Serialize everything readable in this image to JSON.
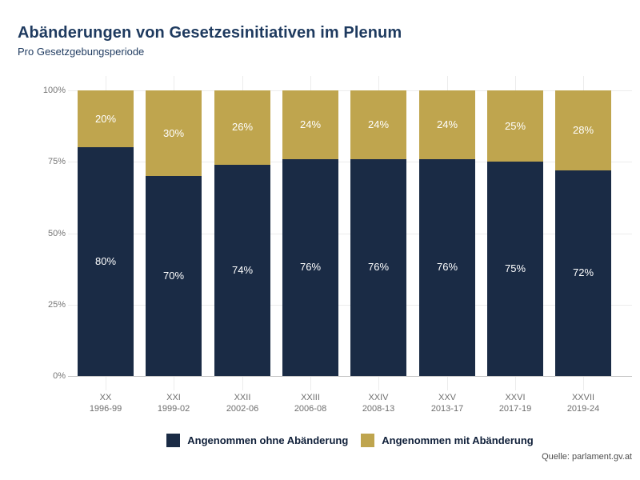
{
  "header": {
    "title": "Abänderungen von Gesetzesinitiativen im Plenum",
    "subtitle": "Pro Gesetzgebungsperiode"
  },
  "footer": {
    "source": "Quelle: parlament.gv.at"
  },
  "colors": {
    "navy": "#1a2b45",
    "gold": "#bfa54e",
    "title_text": "#1e3a5f",
    "axis_label": "#757575",
    "gridline": "#ececec",
    "axis_line": "#c6c6c6",
    "bar_label": "#ffffff",
    "legend_text": "#0e1e38"
  },
  "chart_data": {
    "type": "bar",
    "stacked": true,
    "title": "Abänderungen von Gesetzesinitiativen im Plenum",
    "subtitle": "Pro Gesetzgebungsperiode",
    "categories": [
      "XX",
      "XXI",
      "XXII",
      "XXIII",
      "XXIV",
      "XXV",
      "XXVI",
      "XXVII"
    ],
    "category_sublabels": [
      "1996-99",
      "1999-02",
      "2002-06",
      "2006-08",
      "2008-13",
      "2013-17",
      "2017-19",
      "2019-24"
    ],
    "series": [
      {
        "name": "Angenommen ohne Abänderung",
        "color": "#1a2b45",
        "values": [
          80,
          70,
          74,
          76,
          76,
          76,
          75,
          72
        ],
        "labels": [
          "80%",
          "70%",
          "74%",
          "76%",
          "76%",
          "76%",
          "75%",
          "72%"
        ]
      },
      {
        "name": "Angenommen mit Abänderung",
        "color": "#bfa54e",
        "values": [
          20,
          30,
          26,
          24,
          24,
          24,
          25,
          28
        ],
        "labels": [
          "20%",
          "30%",
          "26%",
          "24%",
          "24%",
          "24%",
          "25%",
          "28%"
        ]
      }
    ],
    "y_axis": {
      "tick_values": [
        0,
        25,
        50,
        75,
        100
      ],
      "tick_labels": [
        "0%",
        "25%",
        "50%",
        "75%",
        "100%"
      ],
      "min": 0,
      "max": 100,
      "grid": true
    },
    "legend_position": "bottom",
    "source": "Quelle: parlament.gv.at"
  }
}
